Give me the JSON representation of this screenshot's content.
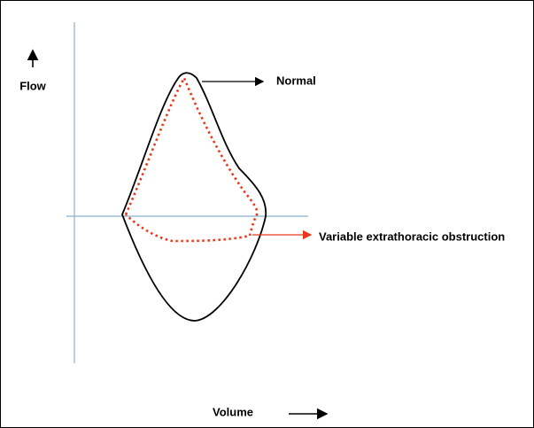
{
  "labels": {
    "y_axis": "Flow",
    "x_axis": "Volume",
    "normal": "Normal",
    "obstruction": "Variable extrathoracic obstruction"
  }
}
